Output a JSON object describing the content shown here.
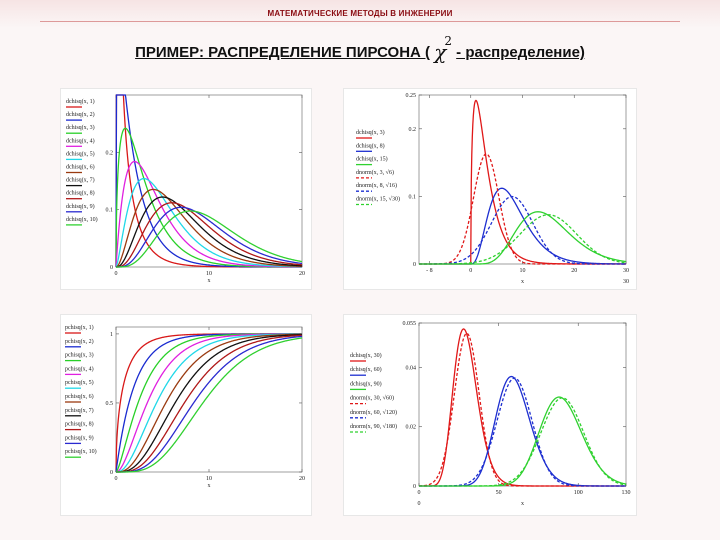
{
  "header": {
    "text": "МАТЕМАТИЧЕСКИЕ МЕТОДЫ В ИНЖЕНЕРИИ"
  },
  "title": {
    "prefix": "ПРИМЕР: РАСПРЕДЕЛЕНИЕ ПИРСОНА (",
    "symbol": "χ",
    "sup": "2",
    "suffix": "- распределение)"
  },
  "colors": {
    "header": "#8a0c12",
    "red": "#e01818",
    "blue": "#1d2ed0",
    "green": "#2fd12f"
  },
  "chart_data": [
    {
      "type": "line",
      "id": "dchisq",
      "xlabel": "x",
      "xlim": [
        0,
        20
      ],
      "ylim": [
        0,
        0.3
      ],
      "xticks": [
        "0",
        "10",
        "20"
      ],
      "yticks": [
        "0",
        "0.1",
        "0.2"
      ],
      "ytick_values": [
        0,
        0.1,
        0.2
      ],
      "series": [
        {
          "name": "dchisq(x, 1)",
          "df": 1,
          "color": "#d81818"
        },
        {
          "name": "dchisq(x, 2)",
          "df": 2,
          "color": "#1a2bd0"
        },
        {
          "name": "dchisq(x, 3)",
          "df": 3,
          "color": "#28d028"
        },
        {
          "name": "dchisq(x, 4)",
          "df": 4,
          "color": "#e020e0"
        },
        {
          "name": "dchisq(x, 5)",
          "df": 5,
          "color": "#20d8e8"
        },
        {
          "name": "dchisq(x, 6)",
          "df": 6,
          "color": "#9a3a10"
        },
        {
          "name": "dchisq(x, 7)",
          "df": 7,
          "color": "#111111"
        },
        {
          "name": "dchisq(x, 8)",
          "df": 8,
          "color": "#b01818"
        },
        {
          "name": "dchisq(x, 9)",
          "df": 9,
          "color": "#2a2ad0"
        },
        {
          "name": "dchisq(x, 10)",
          "df": 10,
          "color": "#30d030"
        }
      ]
    },
    {
      "type": "line",
      "id": "dchisq-vs-dnorm-small",
      "xlabel": "x",
      "xlim": [
        -10,
        30
      ],
      "ylim": [
        0,
        0.25
      ],
      "xticks": [
        "- 8",
        "0",
        "10",
        "20",
        "30"
      ],
      "xtick_values": [
        -8,
        0,
        10,
        20,
        30
      ],
      "xticks_bottom": [
        "30"
      ],
      "yticks": [
        "0",
        "0.1",
        "0.2",
        "0.25"
      ],
      "ytick_values": [
        0,
        0.1,
        0.2,
        0.25
      ],
      "series": [
        {
          "name": "dchisq(x, 3)",
          "df": 3,
          "kind": "chisq",
          "color": "#e01818",
          "dash": false
        },
        {
          "name": "dchisq(x, 8)",
          "df": 8,
          "kind": "chisq",
          "color": "#1d2ed0",
          "dash": false
        },
        {
          "name": "dchisq(x, 15)",
          "df": 15,
          "kind": "chisq",
          "color": "#2fd12f",
          "dash": false
        },
        {
          "name": "dnorm(x, 3, √6)",
          "df": 3,
          "kind": "norm",
          "color": "#e01818",
          "dash": true
        },
        {
          "name": "dnorm(x, 8, √16)",
          "df": 8,
          "kind": "norm",
          "color": "#1d2ed0",
          "dash": true
        },
        {
          "name": "dnorm(x, 15, √30)",
          "df": 15,
          "kind": "norm",
          "color": "#2fd12f",
          "dash": true
        }
      ]
    },
    {
      "type": "line",
      "id": "pchisq",
      "xlabel": "x",
      "xlim": [
        0,
        20
      ],
      "ylim": [
        0,
        1.05
      ],
      "xticks": [
        "0",
        "10",
        "20"
      ],
      "yticks": [
        "0",
        "0.5",
        "1"
      ],
      "ytick_values": [
        0,
        0.5,
        1
      ],
      "series": [
        {
          "name": "pchisq(x, 1)",
          "df": 1,
          "color": "#d81818"
        },
        {
          "name": "pchisq(x, 2)",
          "df": 2,
          "color": "#1a2bd0"
        },
        {
          "name": "pchisq(x, 3)",
          "df": 3,
          "color": "#28d028"
        },
        {
          "name": "pchisq(x, 4)",
          "df": 4,
          "color": "#e020e0"
        },
        {
          "name": "pchisq(x, 5)",
          "df": 5,
          "color": "#20d8e8"
        },
        {
          "name": "pchisq(x, 6)",
          "df": 6,
          "color": "#9a3a10"
        },
        {
          "name": "pchisq(x, 7)",
          "df": 7,
          "color": "#111111"
        },
        {
          "name": "pchisq(x, 8)",
          "df": 8,
          "color": "#b01818"
        },
        {
          "name": "pchisq(x, 9)",
          "df": 9,
          "color": "#2a2ad0"
        },
        {
          "name": "pchisq(x, 10)",
          "df": 10,
          "color": "#30d030"
        }
      ]
    },
    {
      "type": "line",
      "id": "dchisq-vs-dnorm-large",
      "xlabel": "x",
      "xlim": [
        0,
        130
      ],
      "ylim": [
        0,
        0.055
      ],
      "xticks": [
        "0",
        "50",
        "100",
        "130"
      ],
      "xtick_values": [
        0,
        50,
        100,
        130
      ],
      "xticks_bottom": [
        "0"
      ],
      "yticks": [
        "0",
        "0.02",
        "0.04",
        "0.055"
      ],
      "ytick_values": [
        0,
        0.02,
        0.04,
        0.055
      ],
      "series": [
        {
          "name": "dchisq(x, 30)",
          "df": 30,
          "kind": "chisq",
          "color": "#e01818",
          "dash": false
        },
        {
          "name": "dchisq(x, 60)",
          "df": 60,
          "kind": "chisq",
          "color": "#1d2ed0",
          "dash": false
        },
        {
          "name": "dchisq(x, 90)",
          "df": 90,
          "kind": "chisq",
          "color": "#2fd12f",
          "dash": false
        },
        {
          "name": "dnorm(x, 30, √60)",
          "df": 30,
          "kind": "norm",
          "color": "#e01818",
          "dash": true
        },
        {
          "name": "dnorm(x, 60, √120)",
          "df": 60,
          "kind": "norm",
          "color": "#1d2ed0",
          "dash": true
        },
        {
          "name": "dnorm(x, 90, √180)",
          "df": 90,
          "kind": "norm",
          "color": "#2fd12f",
          "dash": true
        }
      ]
    }
  ]
}
